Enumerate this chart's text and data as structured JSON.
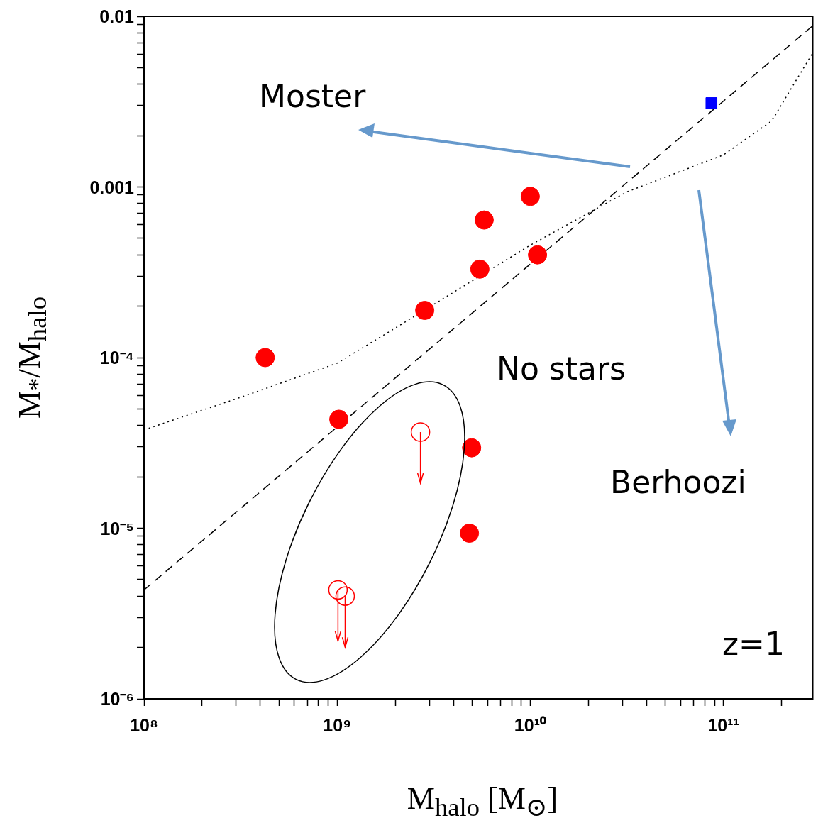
{
  "chart_data": {
    "type": "scatter",
    "xlabel": "M$_{halo}$ [M$_{⊙}$]",
    "ylabel": "M$_{*}$/M$_{halo}$",
    "log": "xy",
    "grid": false,
    "legend": false,
    "xlim": [
      100000000.0,
      290000000000.0
    ],
    "xticks": [
      {
        "value": 100000000.0,
        "label": "10⁸"
      },
      {
        "value": 200000000.0,
        "label": null
      },
      {
        "value": 300000000.0,
        "label": null
      },
      {
        "value": 400000000.0,
        "label": null
      },
      {
        "value": 500000000.0,
        "label": null
      },
      {
        "value": 600000000.0,
        "label": null
      },
      {
        "value": 700000000.0,
        "label": null
      },
      {
        "value": 800000000.0,
        "label": null
      },
      {
        "value": 900000000.0,
        "label": null
      },
      {
        "value": 1000000000.0,
        "label": "10⁹"
      },
      {
        "value": 2000000000.0,
        "label": null
      },
      {
        "value": 3000000000.0,
        "label": null
      },
      {
        "value": 4000000000.0,
        "label": null
      },
      {
        "value": 5000000000.0,
        "label": null
      },
      {
        "value": 6000000000.0,
        "label": null
      },
      {
        "value": 7000000000.0,
        "label": null
      },
      {
        "value": 8000000000.0,
        "label": null
      },
      {
        "value": 9000000000.0,
        "label": null
      },
      {
        "value": 10000000000.0,
        "label": "10¹⁰"
      },
      {
        "value": 20000000000.0,
        "label": null
      },
      {
        "value": 30000000000.0,
        "label": null
      },
      {
        "value": 40000000000.0,
        "label": null
      },
      {
        "value": 50000000000.0,
        "label": null
      },
      {
        "value": 60000000000.0,
        "label": null
      },
      {
        "value": 70000000000.0,
        "label": null
      },
      {
        "value": 80000000000.0,
        "label": null
      },
      {
        "value": 90000000000.0,
        "label": null
      },
      {
        "value": 100000000000.0,
        "label": "10¹¹"
      },
      {
        "value": 200000000000.0,
        "label": null
      }
    ],
    "ylim": [
      1e-06,
      0.01
    ],
    "yticks": [
      {
        "value": 1e-06,
        "label": "10⁻⁶"
      },
      {
        "value": 2e-06,
        "label": null
      },
      {
        "value": 3e-06,
        "label": null
      },
      {
        "value": 4e-06,
        "label": null
      },
      {
        "value": 5e-06,
        "label": null
      },
      {
        "value": 6e-06,
        "label": null
      },
      {
        "value": 7e-06,
        "label": null
      },
      {
        "value": 8e-06,
        "label": null
      },
      {
        "value": 9e-06,
        "label": null
      },
      {
        "value": 1e-05,
        "label": "10⁻⁵"
      },
      {
        "value": 2e-05,
        "label": null
      },
      {
        "value": 3e-05,
        "label": null
      },
      {
        "value": 4e-05,
        "label": null
      },
      {
        "value": 5e-05,
        "label": null
      },
      {
        "value": 6e-05,
        "label": null
      },
      {
        "value": 7e-05,
        "label": null
      },
      {
        "value": 8e-05,
        "label": null
      },
      {
        "value": 9e-05,
        "label": null
      },
      {
        "value": 0.0001,
        "label": "10⁻⁴"
      },
      {
        "value": 0.0002,
        "label": null
      },
      {
        "value": 0.0003,
        "label": null
      },
      {
        "value": 0.0004,
        "label": null
      },
      {
        "value": 0.0005,
        "label": null
      },
      {
        "value": 0.0006,
        "label": null
      },
      {
        "value": 0.0007,
        "label": null
      },
      {
        "value": 0.0008,
        "label": null
      },
      {
        "value": 0.0009,
        "label": null
      },
      {
        "value": 0.001,
        "label": "0.001"
      },
      {
        "value": 0.002,
        "label": null
      },
      {
        "value": 0.003,
        "label": null
      },
      {
        "value": 0.004,
        "label": null
      },
      {
        "value": 0.005,
        "label": null
      },
      {
        "value": 0.006,
        "label": null
      },
      {
        "value": 0.007,
        "label": null
      },
      {
        "value": 0.008,
        "label": null
      },
      {
        "value": 0.009,
        "label": null
      },
      {
        "value": 0.01,
        "label": "0.01"
      }
    ],
    "annotations": [
      "Moster",
      "No stars",
      "Berhoozi",
      "z=1"
    ],
    "series": [
      {
        "marker": "circle",
        "color": "#ff0000",
        "x": [
          424000000.0,
          1020000000.0,
          2840000000.0,
          5480000000.0,
          5770000000.0,
          10000000000.0,
          10900000000.0,
          4970000000.0,
          4840000000.0
        ],
        "values": [
          0.0001,
          4.35e-05,
          0.000189,
          0.00033,
          0.00064,
          0.00088,
          0.0004,
          2.96e-05,
          9.35e-06
        ]
      },
      {
        "marker": "circle",
        "color": "#ff0000",
        "x": [
          2700000000.0,
          1010000000.0,
          1100000000.0
        ],
        "values": [
          3.66e-05,
          4.35e-06,
          4e-06
        ]
      },
      {
        "marker": "square",
        "color": "#0000ff",
        "x": [
          86700000000.0
        ],
        "values": [
          0.0031
        ]
      },
      {
        "type": "line",
        "marker": "none",
        "line_style": "dashed",
        "color": "#000000",
        "x": [
          100000000.0,
          290000000000.0
        ],
        "values": [
          4.35e-06,
          0.0088
        ]
      },
      {
        "type": "line",
        "marker": "none",
        "line_style": "dotted",
        "color": "#000000",
        "x": [
          100000000.0,
          316000000.0,
          1000000000.0,
          2000000000.0,
          10000000000.0,
          31600000000.0,
          100000000000.0,
          178000000000.0,
          248000000000.0,
          290000000000.0
        ],
        "values": [
          3.77e-05,
          5.85e-05,
          9.27e-05,
          0.000149,
          0.000456,
          0.000935,
          0.00154,
          0.00244,
          0.00456,
          0.0061
        ]
      }
    ]
  }
}
